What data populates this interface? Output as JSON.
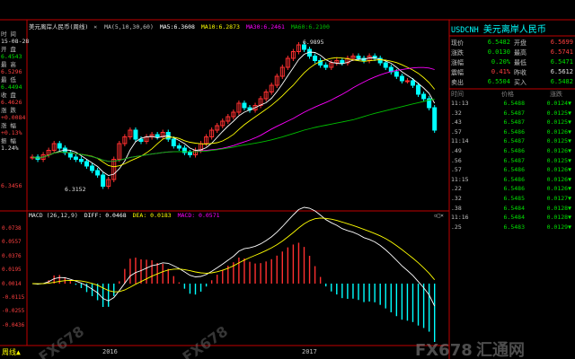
{
  "window": {
    "title": "美元离岸人民币(周线)",
    "close_glyph": "×"
  },
  "indicator_main": {
    "label": "MA(5,10,30,60)",
    "ma5": "MA5:6.3608",
    "ma10": "MA10:6.2873",
    "ma30": "MA30:6.2461",
    "ma60": "MA60:6.2100"
  },
  "left_panel": {
    "time_label": "时 间",
    "time_value": "15-08-28",
    "open_label": "开 盘",
    "open_value": "6.4543",
    "high_label": "最 高",
    "high_value": "6.5296",
    "low_label": "最 低",
    "low_value": "6.4494",
    "close_label": "收 盘",
    "close_value": "6.4626",
    "chg_label": "涨 跌",
    "chg_value": "+0.0084",
    "pct_label": "涨 幅",
    "pct_value": "+0.13%",
    "amp_label": "振 幅",
    "amp_value": "1.24%",
    "axis_low": "6.3456"
  },
  "chart_labels": {
    "high_marker": "6.9895",
    "low_marker": "6.3152",
    "year_2016": "2016",
    "year_2017": "2017",
    "period": "周线▲"
  },
  "macd": {
    "label": "MACD (26,12,9)",
    "diff": "DIFF: 0.0468",
    "dea": "DEA: 0.0183",
    "macd": "MACD: 0.0571",
    "axis": [
      "0.0738",
      "0.0557",
      "0.0376",
      "0.0195",
      "0.0014",
      "-0.0115",
      "-0.0255",
      "-0.0436"
    ],
    "icons": "▫□×"
  },
  "quote": {
    "symbol": "USDCNH",
    "name": "美元离岸人民币",
    "rows": [
      {
        "l1": "现价",
        "v1": "6.5482",
        "c1": "green",
        "l2": "开盘",
        "v2": "6.5699",
        "c2": "red"
      },
      {
        "l1": "涨跌",
        "v1": "0.0130",
        "c1": "green",
        "l2": "最高",
        "v2": "6.5741",
        "c2": "red"
      },
      {
        "l1": "涨幅",
        "v1": "0.20%",
        "c1": "green",
        "l2": "最低",
        "v2": "6.5471",
        "c2": "green"
      },
      {
        "l1": "震幅",
        "v1": "0.41%",
        "c1": "red",
        "l2": "昨收",
        "v2": "6.5612",
        "c2": "white"
      },
      {
        "l1": "卖出",
        "v1": "6.5504",
        "c1": "green",
        "l2": "买入",
        "v2": "6.5482",
        "c2": "green"
      }
    ]
  },
  "ticks": {
    "header": {
      "time": "时间",
      "price": "价格",
      "chg": "涨跌"
    },
    "rows": [
      {
        "time": "11:13",
        "price": "6.5488",
        "chg": "0.0124▼"
      },
      {
        "time": ".32",
        "price": "6.5487",
        "chg": "0.0125▼"
      },
      {
        "time": ".43",
        "price": "6.5487",
        "chg": "0.0125▼"
      },
      {
        "time": ".57",
        "price": "6.5486",
        "chg": "0.0126▼"
      },
      {
        "time": "11:14",
        "price": "6.5487",
        "chg": "0.0125▼"
      },
      {
        "time": ".49",
        "price": "6.5486",
        "chg": "0.0126▼"
      },
      {
        "time": ".56",
        "price": "6.5487",
        "chg": "0.0125▼"
      },
      {
        "time": ".57",
        "price": "6.5486",
        "chg": "0.0126▼"
      },
      {
        "time": "11:15",
        "price": "6.5486",
        "chg": "0.0126▼"
      },
      {
        "time": ".22",
        "price": "6.5486",
        "chg": "0.0126▼"
      },
      {
        "time": ".32",
        "price": "6.5485",
        "chg": "0.0127▼"
      },
      {
        "time": ".38",
        "price": "6.5484",
        "chg": "0.0128▼"
      },
      {
        "time": "11:16",
        "price": "6.5484",
        "chg": "0.0128▼"
      },
      {
        "time": ".25",
        "price": "6.5483",
        "chg": "0.0129▼"
      }
    ]
  },
  "watermark": {
    "text1": "FX678",
    "text2": "FX678",
    "brand": "FX678",
    "brand_cn": "汇通网"
  },
  "colors": {
    "up": "#ff3030",
    "down": "#00ffff",
    "ma5": "#ffffff",
    "ma10": "#ffff00",
    "ma30": "#ff00ff",
    "ma60": "#00c000",
    "grid": "#c00000"
  }
}
